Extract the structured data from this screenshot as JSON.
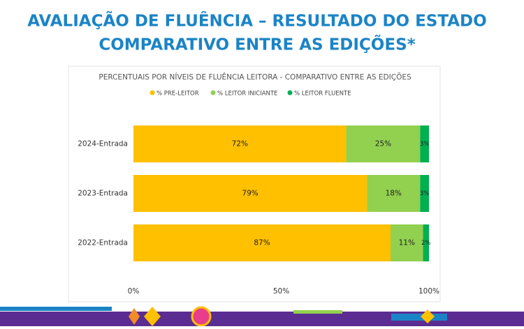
{
  "slide": {
    "title": [
      "AVALIAÇÃO DE FLUÊNCIA – RESULTADO DO ESTADO",
      "COMPARATIVO ENTRE AS EDIÇÕES*"
    ]
  },
  "chart_data": {
    "type": "stacked-bar-horizontal",
    "title": "PERCENTUAIS POR NÍVEIS DE FLUÊNCIA LEITORA - COMPARATIVO ENTRE AS EDIÇÕES",
    "categories": [
      "2024-Entrada",
      "2023-Entrada",
      "2022-Entrada"
    ],
    "series": [
      {
        "name": "% PRE-LEITOR",
        "color": "#ffc000",
        "values": [
          72,
          79,
          87
        ],
        "value_labels": [
          "72%",
          "79%",
          "87%"
        ]
      },
      {
        "name": "% LEITOR INICIANTE",
        "color": "#92d050",
        "values": [
          25,
          18,
          11
        ],
        "value_labels": [
          "25%",
          "18%",
          "11%"
        ]
      },
      {
        "name": "% LEITOR FLUENTE",
        "color": "#00b050",
        "values": [
          3,
          3,
          2
        ],
        "value_labels": [
          "3%",
          "3%",
          "2%"
        ]
      }
    ],
    "xlim": [
      0,
      100
    ],
    "xticks": [
      {
        "value": 0,
        "label": "0%"
      },
      {
        "value": 50,
        "label": "50%"
      },
      {
        "value": 100,
        "label": "100%"
      }
    ],
    "legend": "top",
    "grid": false
  }
}
